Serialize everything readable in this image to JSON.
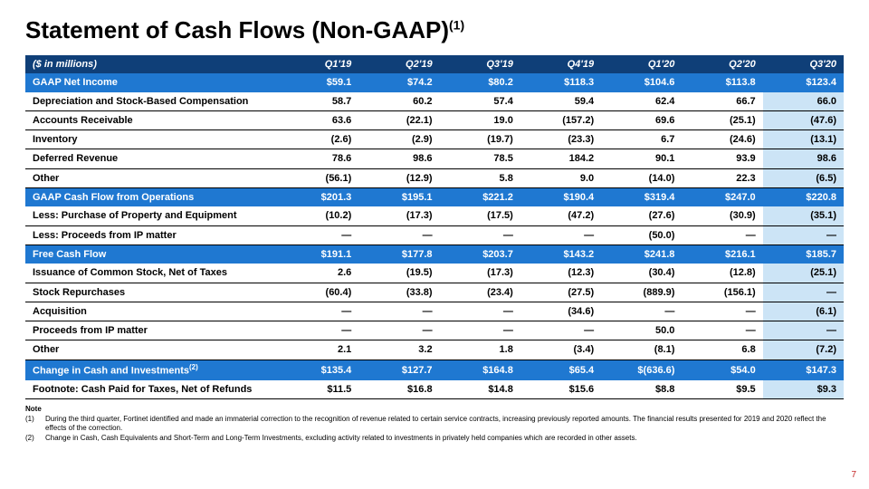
{
  "title_main": "Statement of Cash Flows (Non-GAAP)",
  "title_sup": "(1)",
  "page_number": "7",
  "header": {
    "label": "($ in millions)",
    "cols": [
      "Q1'19",
      "Q2'19",
      "Q3'19",
      "Q4'19",
      "Q1'20",
      "Q2'20",
      "Q3'20"
    ]
  },
  "styles": {
    "header_bg": "#0f3f78",
    "section_bg": "#1f78d1",
    "highlight_bg": "#cce4f6",
    "text_color": "#000000",
    "section_text": "#ffffff",
    "border_color": "#000000",
    "pagenum_color": "#c62828"
  },
  "rows": [
    {
      "type": "section",
      "label": "GAAP Net Income",
      "vals": [
        "$59.1",
        "$74.2",
        "$80.2",
        "$118.3",
        "$104.6",
        "$113.8",
        "$123.4"
      ]
    },
    {
      "type": "data",
      "label": "Depreciation and Stock-Based Compensation",
      "vals": [
        "58.7",
        "60.2",
        "57.4",
        "59.4",
        "62.4",
        "66.7",
        "66.0"
      ]
    },
    {
      "type": "data",
      "label": "Accounts Receivable",
      "vals": [
        "63.6",
        "(22.1)",
        "19.0",
        "(157.2)",
        "69.6",
        "(25.1)",
        "(47.6)"
      ]
    },
    {
      "type": "data",
      "label": "Inventory",
      "vals": [
        "(2.6)",
        "(2.9)",
        "(19.7)",
        "(23.3)",
        "6.7",
        "(24.6)",
        "(13.1)"
      ]
    },
    {
      "type": "data",
      "label": "Deferred Revenue",
      "vals": [
        "78.6",
        "98.6",
        "78.5",
        "184.2",
        "90.1",
        "93.9",
        "98.6"
      ]
    },
    {
      "type": "data",
      "label": "Other",
      "vals": [
        "(56.1)",
        "(12.9)",
        "5.8",
        "9.0",
        "(14.0)",
        "22.3",
        "(6.5)"
      ]
    },
    {
      "type": "section",
      "label": "GAAP Cash Flow from Operations",
      "vals": [
        "$201.3",
        "$195.1",
        "$221.2",
        "$190.4",
        "$319.4",
        "$247.0",
        "$220.8"
      ]
    },
    {
      "type": "data",
      "label": "Less: Purchase of Property and Equipment",
      "vals": [
        "(10.2)",
        "(17.3)",
        "(17.5)",
        "(47.2)",
        "(27.6)",
        "(30.9)",
        "(35.1)"
      ]
    },
    {
      "type": "data",
      "label": "Less: Proceeds from IP matter",
      "vals": [
        "—",
        "—",
        "—",
        "—",
        "(50.0)",
        "—",
        "—"
      ]
    },
    {
      "type": "section",
      "label": "Free Cash Flow",
      "vals": [
        "$191.1",
        "$177.8",
        "$203.7",
        "$143.2",
        "$241.8",
        "$216.1",
        "$185.7"
      ]
    },
    {
      "type": "data",
      "label": "Issuance of Common Stock, Net of Taxes",
      "vals": [
        "2.6",
        "(19.5)",
        "(17.3)",
        "(12.3)",
        "(30.4)",
        "(12.8)",
        "(25.1)"
      ]
    },
    {
      "type": "data",
      "label": "Stock Repurchases",
      "vals": [
        "(60.4)",
        "(33.8)",
        "(23.4)",
        "(27.5)",
        "(889.9)",
        "(156.1)",
        "—"
      ]
    },
    {
      "type": "data",
      "label": "Acquisition",
      "vals": [
        "—",
        "—",
        "—",
        "(34.6)",
        "—",
        "—",
        "(6.1)"
      ]
    },
    {
      "type": "data",
      "label": "Proceeds from IP matter",
      "vals": [
        "—",
        "—",
        "—",
        "—",
        "50.0",
        "—",
        "—"
      ]
    },
    {
      "type": "data",
      "label": "Other",
      "vals": [
        "2.1",
        "3.2",
        "1.8",
        "(3.4)",
        "(8.1)",
        "6.8",
        "(7.2)"
      ]
    },
    {
      "type": "section",
      "label": "Change in Cash and Investments",
      "label_sup": "(2)",
      "vals": [
        "$135.4",
        "$127.7",
        "$164.8",
        "$65.4",
        "$(636.6)",
        "$54.0",
        "$147.3"
      ]
    },
    {
      "type": "footnote",
      "label": "Footnote: Cash Paid for Taxes, Net of Refunds",
      "vals": [
        "$11.5",
        "$16.8",
        "$14.8",
        "$15.6",
        "$8.8",
        "$9.5",
        "$9.3"
      ]
    }
  ],
  "notes": {
    "header": "Note",
    "items": [
      {
        "num": "(1)",
        "text": "During the third quarter, Fortinet identified and made an immaterial correction to the recognition of revenue related to certain service contracts, increasing previously reported amounts. The financial results presented for 2019 and 2020 reflect the effects of the correction."
      },
      {
        "num": "(2)",
        "text": "Change in Cash, Cash Equivalents and Short-Term and Long-Term Investments, excluding activity related to investments in privately held companies which are recorded in other assets."
      }
    ]
  }
}
